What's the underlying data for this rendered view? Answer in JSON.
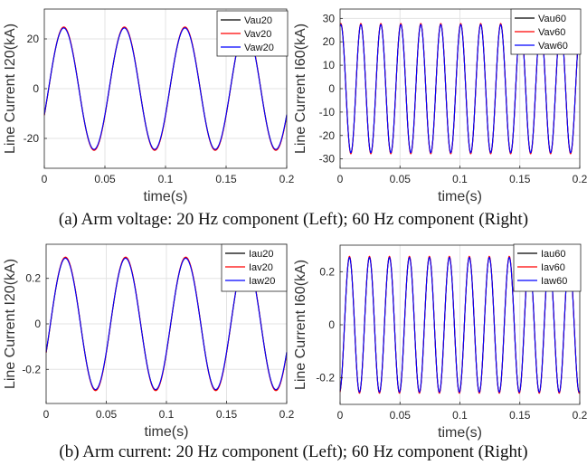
{
  "captions": {
    "a": "(a) Arm voltage: 20 Hz component (Left); 60 Hz component (Right)",
    "b": "(b) Arm current: 20 Hz component (Left); 60 Hz component (Right)"
  },
  "chart_data": [
    {
      "type": "line",
      "title": "",
      "xlabel": "time(s)",
      "ylabel": "Line Current I20(kA)",
      "xlim": [
        0,
        0.2
      ],
      "ylim": [
        -32,
        32
      ],
      "xticks": [
        0,
        0.05,
        0.1,
        0.15,
        0.2
      ],
      "xticklabels": [
        "0",
        "0.05",
        "0.1",
        "0.15",
        "0.2"
      ],
      "yticks": [
        -20,
        0,
        20
      ],
      "yticklabels": [
        "-20",
        "0",
        "20"
      ],
      "grid": true,
      "legend_position": "top-right",
      "waveform": {
        "frequency_hz": 20,
        "amplitude": 24.5,
        "phase_deg": -26
      },
      "series": [
        {
          "name": "Vau20",
          "color": "#000000"
        },
        {
          "name": "Vav20",
          "color": "#ff0000"
        },
        {
          "name": "Vaw20",
          "color": "#0000ff"
        }
      ]
    },
    {
      "type": "line",
      "title": "",
      "xlabel": "time(s)",
      "ylabel": "Line Current I60(kA)",
      "xlim": [
        0,
        0.2
      ],
      "ylim": [
        -34,
        34
      ],
      "xticks": [
        0,
        0.05,
        0.1,
        0.15,
        0.2
      ],
      "xticklabels": [
        "0",
        "0.05",
        "0.1",
        "0.15",
        "0.2"
      ],
      "yticks": [
        -30,
        -20,
        -10,
        0,
        10,
        20,
        30
      ],
      "yticklabels": [
        "-30",
        "-20",
        "-10",
        "0",
        "10",
        "20",
        "30"
      ],
      "grid": true,
      "legend_position": "top-right",
      "waveform": {
        "frequency_hz": 60,
        "amplitude": 27.5,
        "phase_deg": 75
      },
      "series": [
        {
          "name": "Vau60",
          "color": "#000000"
        },
        {
          "name": "Vav60",
          "color": "#ff0000"
        },
        {
          "name": "Vaw60",
          "color": "#0000ff"
        }
      ]
    },
    {
      "type": "line",
      "title": "",
      "xlabel": "time(s)",
      "ylabel": "Line Current I20(kA)",
      "xlim": [
        0,
        0.2
      ],
      "ylim": [
        -0.35,
        0.35
      ],
      "xticks": [
        0,
        0.05,
        0.1,
        0.15,
        0.2
      ],
      "xticklabels": [
        "0",
        "0.05",
        "0.1",
        "0.15",
        "0.2"
      ],
      "yticks": [
        -0.2,
        0,
        0.2
      ],
      "yticklabels": [
        "-0.2",
        "0",
        "0.2"
      ],
      "grid": true,
      "legend_position": "top-right",
      "waveform": {
        "frequency_hz": 20,
        "amplitude": 0.29,
        "phase_deg": -26
      },
      "series": [
        {
          "name": "Iau20",
          "color": "#000000"
        },
        {
          "name": "Iav20",
          "color": "#ff0000"
        },
        {
          "name": "Iaw20",
          "color": "#0000ff"
        }
      ]
    },
    {
      "type": "line",
      "title": "",
      "xlabel": "time(s)",
      "ylabel": "Line Current I60(kA)",
      "xlim": [
        0,
        0.2
      ],
      "ylim": [
        -0.3,
        0.3
      ],
      "xticks": [
        0,
        0.05,
        0.1,
        0.15,
        0.2
      ],
      "xticklabels": [
        "0",
        "0.05",
        "0.1",
        "0.15",
        "0.2"
      ],
      "yticks": [
        -0.2,
        0,
        0.2
      ],
      "yticklabels": [
        "-0.2",
        "0",
        "0.2"
      ],
      "grid": true,
      "legend_position": "top-right",
      "waveform": {
        "frequency_hz": 60,
        "amplitude": 0.255,
        "phase_deg": -80
      },
      "series": [
        {
          "name": "Iau60",
          "color": "#000000"
        },
        {
          "name": "Iav60",
          "color": "#ff0000"
        },
        {
          "name": "Iaw60",
          "color": "#0000ff"
        }
      ]
    }
  ]
}
